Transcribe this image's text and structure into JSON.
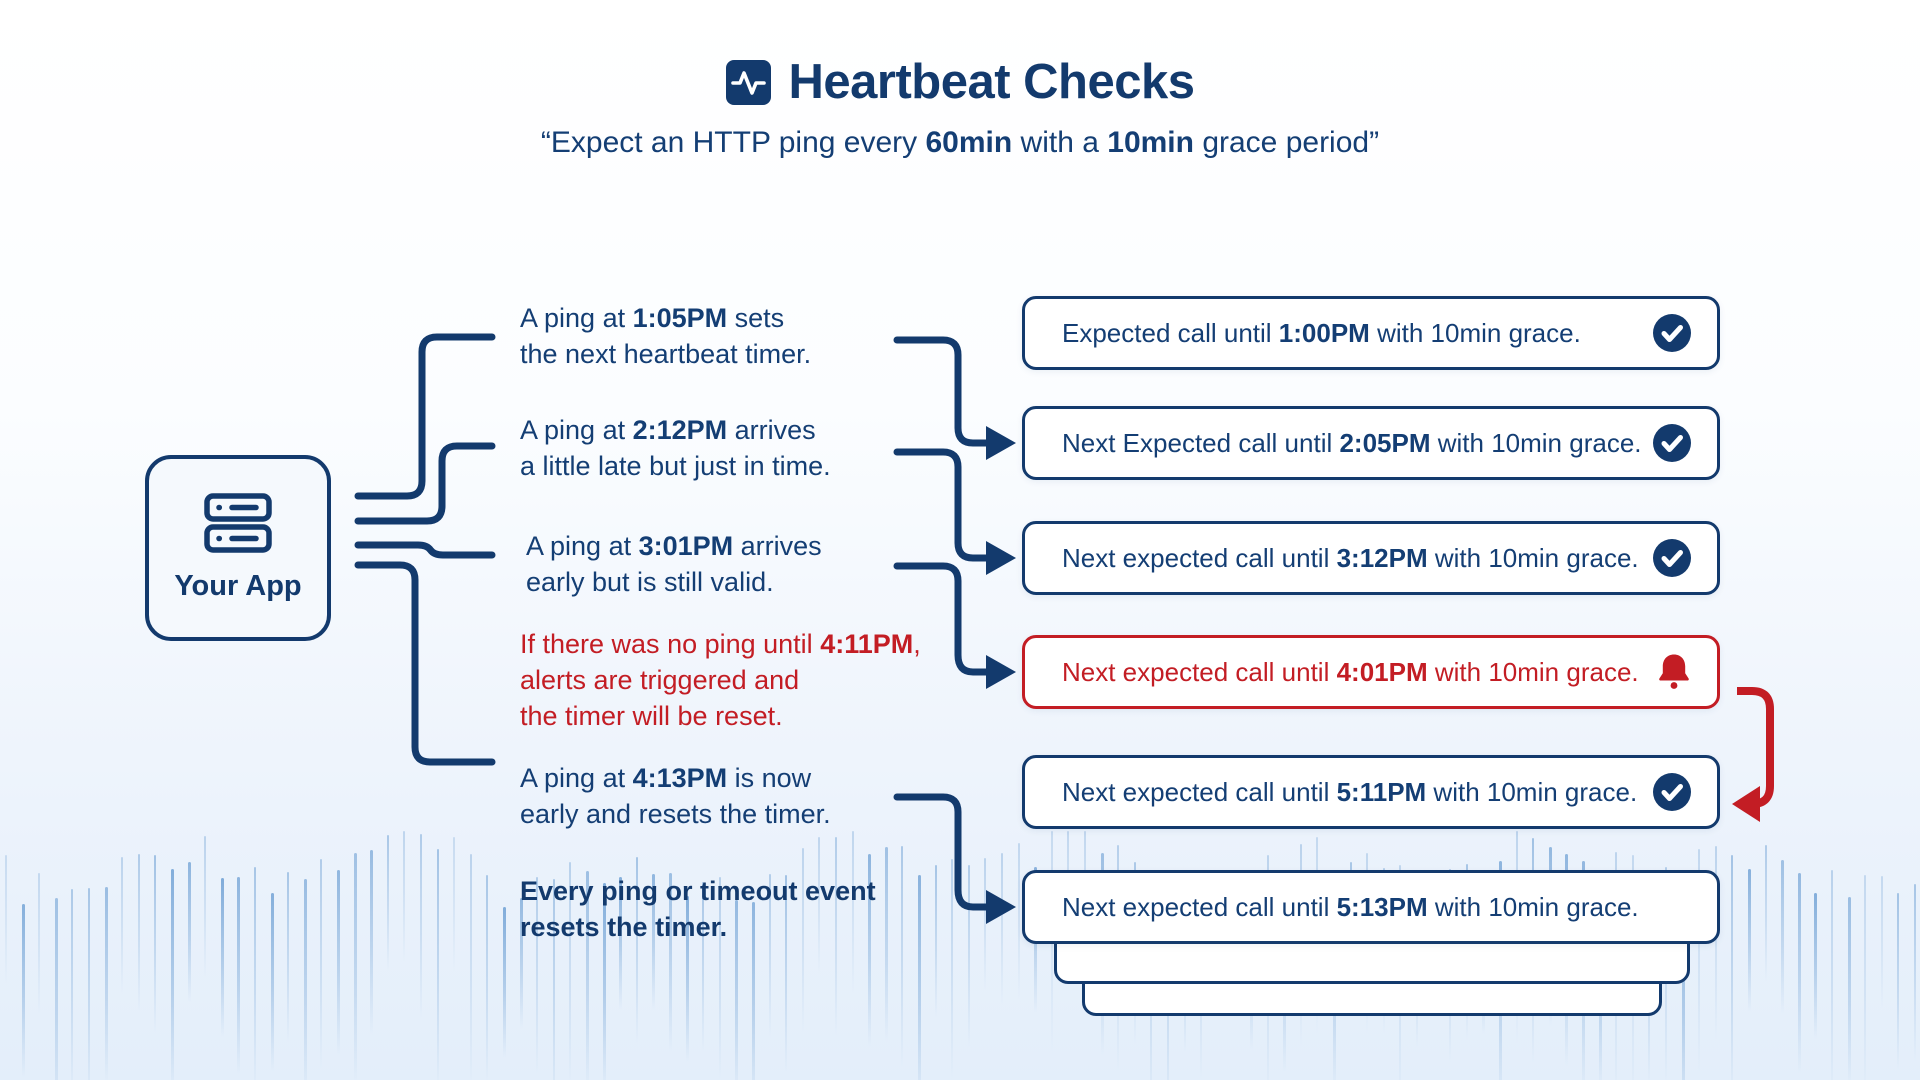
{
  "colors": {
    "navy": "#133a6d",
    "red": "#c31d24",
    "background_top": "#ffffff",
    "background_bottom": "#e3eefa",
    "wave_line": "#7ba9d8",
    "box_background": "#ffffff",
    "app_box_background": "#f5f9fd"
  },
  "header": {
    "icon": "activity-icon",
    "title": "Heartbeat Checks",
    "subtitle_segments": [
      {
        "text": "“Expect an HTTP ping every ",
        "bold": false
      },
      {
        "text": "60min",
        "bold": true
      },
      {
        "text": " with a ",
        "bold": false
      },
      {
        "text": "10min",
        "bold": true
      },
      {
        "text": " grace period”",
        "bold": false
      }
    ]
  },
  "app_node": {
    "icon": "server-icon",
    "label": "Your App"
  },
  "events": [
    {
      "tone": "navy",
      "bold": false,
      "lines": [
        [
          {
            "text": "A ping at "
          },
          {
            "text": "1:05PM",
            "bold": true
          },
          {
            "text": " sets"
          }
        ],
        [
          {
            "text": "the next heartbeat timer."
          }
        ]
      ]
    },
    {
      "tone": "navy",
      "bold": false,
      "lines": [
        [
          {
            "text": "A ping at "
          },
          {
            "text": "2:12PM",
            "bold": true
          },
          {
            "text": " arrives"
          }
        ],
        [
          {
            "text": "a little late but just in time."
          }
        ]
      ]
    },
    {
      "tone": "navy",
      "bold": false,
      "lines": [
        [
          {
            "text": "A ping at "
          },
          {
            "text": "3:01PM",
            "bold": true
          },
          {
            "text": " arrives"
          }
        ],
        [
          {
            "text": "early but is still valid."
          }
        ]
      ]
    },
    {
      "tone": "red",
      "bold": false,
      "lines": [
        [
          {
            "text": "If there was no ping until "
          },
          {
            "text": "4:11PM",
            "bold": true
          },
          {
            "text": ","
          }
        ],
        [
          {
            "text": "alerts are triggered and"
          }
        ],
        [
          {
            "text": "the timer will be reset."
          }
        ]
      ]
    },
    {
      "tone": "navy",
      "bold": false,
      "lines": [
        [
          {
            "text": "A ping at "
          },
          {
            "text": "4:13PM",
            "bold": true
          },
          {
            "text": " is now"
          }
        ],
        [
          {
            "text": "early and resets the timer."
          }
        ]
      ]
    },
    {
      "tone": "navy",
      "bold": true,
      "lines": [
        [
          {
            "text": "Every ping or timeout event"
          }
        ],
        [
          {
            "text": "resets the timer."
          }
        ]
      ]
    }
  ],
  "checks": [
    {
      "tone": "navy",
      "icon": "check-circle-icon",
      "segments": [
        {
          "text": "Expected call until "
        },
        {
          "text": "1:00PM",
          "bold": true
        },
        {
          "text": " with 10min grace."
        }
      ]
    },
    {
      "tone": "navy",
      "icon": "check-circle-icon",
      "segments": [
        {
          "text": "Next Expected call until "
        },
        {
          "text": "2:05PM",
          "bold": true
        },
        {
          "text": " with 10min grace."
        }
      ]
    },
    {
      "tone": "navy",
      "icon": "check-circle-icon",
      "segments": [
        {
          "text": "Next expected call until "
        },
        {
          "text": "3:12PM",
          "bold": true
        },
        {
          "text": " with 10min grace."
        }
      ]
    },
    {
      "tone": "red",
      "icon": "bell-icon",
      "segments": [
        {
          "text": "Next expected call until "
        },
        {
          "text": "4:01PM",
          "bold": true
        },
        {
          "text": " with 10min grace."
        }
      ]
    },
    {
      "tone": "navy",
      "icon": "check-circle-icon",
      "segments": [
        {
          "text": "Next expected call until "
        },
        {
          "text": "5:11PM",
          "bold": true
        },
        {
          "text": " with 10min grace."
        }
      ]
    },
    {
      "tone": "navy",
      "icon": "none",
      "segments": [
        {
          "text": "Next expected call until "
        },
        {
          "text": "5:13PM",
          "bold": true
        },
        {
          "text": " with 10min grace."
        }
      ]
    }
  ]
}
